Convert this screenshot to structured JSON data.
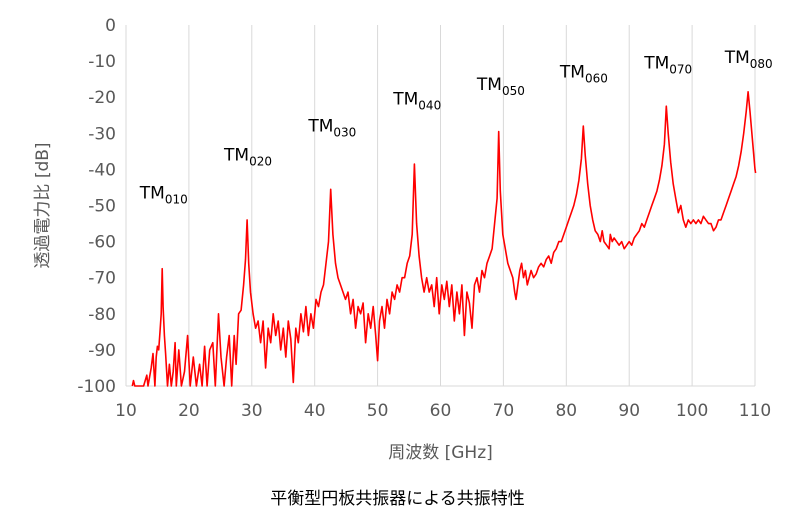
{
  "chart_data": {
    "type": "line",
    "xlabel": "周波数 [GHz]",
    "ylabel": "透過電力比 [dB]",
    "caption": "平衡型円板共振器による共振特性",
    "xlim": [
      10,
      110
    ],
    "ylim": [
      -100,
      0
    ],
    "x_ticks": [
      10,
      20,
      30,
      40,
      50,
      60,
      70,
      80,
      90,
      100,
      110
    ],
    "y_ticks": [
      0,
      -10,
      -20,
      -30,
      -40,
      -50,
      -60,
      -70,
      -80,
      -90,
      -100
    ],
    "grid": "vertical",
    "line_color": "#ff0000",
    "peak_labels": [
      {
        "main": "TM",
        "sub": "010",
        "x": 16.0,
        "y": -48.0
      },
      {
        "main": "TM",
        "sub": "020",
        "x": 29.4,
        "y": -37.5
      },
      {
        "main": "TM",
        "sub": "030",
        "x": 42.8,
        "y": -29.5
      },
      {
        "main": "TM",
        "sub": "040",
        "x": 56.3,
        "y": -22.0
      },
      {
        "main": "TM",
        "sub": "050",
        "x": 69.6,
        "y": -18.0
      },
      {
        "main": "TM",
        "sub": "060",
        "x": 82.8,
        "y": -14.5
      },
      {
        "main": "TM",
        "sub": "070",
        "x": 96.2,
        "y": -12.0
      },
      {
        "main": "TM",
        "sub": "080",
        "x": 109.0,
        "y": -10.5
      }
    ],
    "series": [
      {
        "points": [
          [
            11.0,
            -100
          ],
          [
            11.2,
            -98.5
          ],
          [
            11.4,
            -100
          ],
          [
            12.8,
            -100
          ],
          [
            13.3,
            -97
          ],
          [
            13.5,
            -100
          ],
          [
            14.0,
            -95
          ],
          [
            14.3,
            -91
          ],
          [
            14.6,
            -100
          ],
          [
            14.8,
            -92
          ],
          [
            15.0,
            -89
          ],
          [
            15.2,
            -90
          ],
          [
            15.4,
            -85
          ],
          [
            15.6,
            -80
          ],
          [
            15.75,
            -67.5
          ],
          [
            15.9,
            -78
          ],
          [
            16.1,
            -86
          ],
          [
            16.3,
            -91
          ],
          [
            16.6,
            -100
          ],
          [
            16.9,
            -94
          ],
          [
            17.2,
            -100
          ],
          [
            17.5,
            -96
          ],
          [
            17.8,
            -88
          ],
          [
            18.0,
            -100
          ],
          [
            18.4,
            -90
          ],
          [
            18.8,
            -100
          ],
          [
            19.3,
            -96
          ],
          [
            19.8,
            -86
          ],
          [
            20.2,
            -100
          ],
          [
            20.7,
            -92
          ],
          [
            21.2,
            -100
          ],
          [
            21.7,
            -94
          ],
          [
            22.1,
            -100
          ],
          [
            22.5,
            -89
          ],
          [
            22.9,
            -100
          ],
          [
            23.3,
            -90
          ],
          [
            23.8,
            -88
          ],
          [
            24.2,
            -100
          ],
          [
            24.7,
            -80
          ],
          [
            25.1,
            -92
          ],
          [
            25.6,
            -100
          ],
          [
            26.0,
            -92
          ],
          [
            26.4,
            -86
          ],
          [
            26.8,
            -100
          ],
          [
            27.2,
            -86
          ],
          [
            27.5,
            -94
          ],
          [
            27.9,
            -80
          ],
          [
            28.3,
            -79
          ],
          [
            28.7,
            -72
          ],
          [
            29.0,
            -65
          ],
          [
            29.25,
            -54
          ],
          [
            29.5,
            -66
          ],
          [
            29.8,
            -74
          ],
          [
            30.2,
            -80
          ],
          [
            30.6,
            -84
          ],
          [
            31.0,
            -82
          ],
          [
            31.4,
            -88
          ],
          [
            31.8,
            -82
          ],
          [
            32.2,
            -95
          ],
          [
            32.6,
            -84
          ],
          [
            33.0,
            -88
          ],
          [
            33.4,
            -80
          ],
          [
            33.8,
            -86
          ],
          [
            34.2,
            -82
          ],
          [
            34.6,
            -90
          ],
          [
            35.0,
            -84
          ],
          [
            35.4,
            -92
          ],
          [
            35.8,
            -82
          ],
          [
            36.2,
            -87
          ],
          [
            36.6,
            -99
          ],
          [
            37.0,
            -84
          ],
          [
            37.4,
            -88
          ],
          [
            37.8,
            -80
          ],
          [
            38.2,
            -85
          ],
          [
            38.6,
            -78
          ],
          [
            39.0,
            -86
          ],
          [
            39.4,
            -80
          ],
          [
            39.8,
            -84
          ],
          [
            40.2,
            -76
          ],
          [
            40.6,
            -78
          ],
          [
            41.0,
            -74
          ],
          [
            41.4,
            -72
          ],
          [
            41.8,
            -66
          ],
          [
            42.2,
            -60
          ],
          [
            42.55,
            -45.5
          ],
          [
            42.9,
            -58
          ],
          [
            43.3,
            -66
          ],
          [
            43.7,
            -70
          ],
          [
            44.1,
            -72
          ],
          [
            44.5,
            -74
          ],
          [
            44.9,
            -76
          ],
          [
            45.3,
            -74
          ],
          [
            45.7,
            -80
          ],
          [
            46.1,
            -76
          ],
          [
            46.5,
            -84
          ],
          [
            46.9,
            -78
          ],
          [
            47.3,
            -80
          ],
          [
            47.7,
            -77
          ],
          [
            48.1,
            -88
          ],
          [
            48.5,
            -80
          ],
          [
            48.9,
            -84
          ],
          [
            49.3,
            -78
          ],
          [
            49.7,
            -86
          ],
          [
            50.0,
            -93
          ],
          [
            50.3,
            -82
          ],
          [
            50.7,
            -78
          ],
          [
            51.1,
            -84
          ],
          [
            51.5,
            -76
          ],
          [
            51.9,
            -80
          ],
          [
            52.3,
            -74
          ],
          [
            52.7,
            -76
          ],
          [
            53.1,
            -72
          ],
          [
            53.5,
            -74
          ],
          [
            53.9,
            -70
          ],
          [
            54.3,
            -70
          ],
          [
            54.7,
            -66
          ],
          [
            55.1,
            -64
          ],
          [
            55.5,
            -58
          ],
          [
            55.85,
            -38.5
          ],
          [
            56.2,
            -55
          ],
          [
            56.6,
            -64
          ],
          [
            57.0,
            -70
          ],
          [
            57.4,
            -74
          ],
          [
            57.8,
            -70
          ],
          [
            58.2,
            -74
          ],
          [
            58.6,
            -72
          ],
          [
            59.0,
            -78
          ],
          [
            59.4,
            -70
          ],
          [
            59.8,
            -80
          ],
          [
            60.2,
            -72
          ],
          [
            60.6,
            -76
          ],
          [
            61.0,
            -71
          ],
          [
            61.4,
            -78
          ],
          [
            61.8,
            -72
          ],
          [
            62.2,
            -82
          ],
          [
            62.6,
            -74
          ],
          [
            63.0,
            -80
          ],
          [
            63.4,
            -72
          ],
          [
            63.8,
            -86
          ],
          [
            64.2,
            -74
          ],
          [
            64.6,
            -77
          ],
          [
            65.0,
            -84
          ],
          [
            65.4,
            -72
          ],
          [
            65.8,
            -70
          ],
          [
            66.2,
            -74
          ],
          [
            66.6,
            -68
          ],
          [
            67.0,
            -70
          ],
          [
            67.4,
            -66
          ],
          [
            67.8,
            -64
          ],
          [
            68.2,
            -62
          ],
          [
            68.6,
            -55
          ],
          [
            69.0,
            -48
          ],
          [
            69.25,
            -29.5
          ],
          [
            69.5,
            -46
          ],
          [
            69.9,
            -58
          ],
          [
            70.3,
            -62
          ],
          [
            70.7,
            -66
          ],
          [
            71.1,
            -68
          ],
          [
            71.5,
            -70
          ],
          [
            71.8,
            -74
          ],
          [
            72.0,
            -76
          ],
          [
            72.3,
            -72
          ],
          [
            72.6,
            -68
          ],
          [
            72.9,
            -66
          ],
          [
            73.2,
            -70
          ],
          [
            73.5,
            -68
          ],
          [
            73.8,
            -72
          ],
          [
            74.1,
            -70
          ],
          [
            74.4,
            -68
          ],
          [
            74.8,
            -70
          ],
          [
            75.2,
            -69
          ],
          [
            75.6,
            -67
          ],
          [
            76.0,
            -66
          ],
          [
            76.4,
            -67
          ],
          [
            76.8,
            -65
          ],
          [
            77.2,
            -64
          ],
          [
            77.6,
            -66
          ],
          [
            78.0,
            -63
          ],
          [
            78.4,
            -62
          ],
          [
            78.8,
            -60
          ],
          [
            79.2,
            -60
          ],
          [
            79.6,
            -58
          ],
          [
            80.0,
            -56
          ],
          [
            80.4,
            -54
          ],
          [
            80.8,
            -52
          ],
          [
            81.2,
            -50
          ],
          [
            81.6,
            -47
          ],
          [
            82.0,
            -43
          ],
          [
            82.4,
            -37
          ],
          [
            82.7,
            -28
          ],
          [
            83.0,
            -36
          ],
          [
            83.4,
            -44
          ],
          [
            83.8,
            -50
          ],
          [
            84.2,
            -54
          ],
          [
            84.6,
            -57
          ],
          [
            85.0,
            -58
          ],
          [
            85.4,
            -60
          ],
          [
            85.7,
            -57
          ],
          [
            86.0,
            -60
          ],
          [
            86.4,
            -61
          ],
          [
            86.8,
            -62
          ],
          [
            87.0,
            -58
          ],
          [
            87.3,
            -60
          ],
          [
            87.6,
            -59
          ],
          [
            88.0,
            -60
          ],
          [
            88.4,
            -61
          ],
          [
            88.8,
            -60
          ],
          [
            89.2,
            -62
          ],
          [
            89.6,
            -61
          ],
          [
            90.0,
            -60
          ],
          [
            90.4,
            -61
          ],
          [
            90.8,
            -59
          ],
          [
            91.2,
            -58
          ],
          [
            91.6,
            -57
          ],
          [
            92.0,
            -55
          ],
          [
            92.4,
            -56
          ],
          [
            92.8,
            -54
          ],
          [
            93.2,
            -52
          ],
          [
            93.6,
            -50
          ],
          [
            94.0,
            -48
          ],
          [
            94.4,
            -46
          ],
          [
            94.8,
            -43
          ],
          [
            95.2,
            -39
          ],
          [
            95.6,
            -33
          ],
          [
            95.9,
            -22.5
          ],
          [
            96.2,
            -30
          ],
          [
            96.6,
            -38
          ],
          [
            97.0,
            -44
          ],
          [
            97.4,
            -48
          ],
          [
            97.8,
            -52
          ],
          [
            98.2,
            -50
          ],
          [
            98.6,
            -54
          ],
          [
            99.0,
            -56
          ],
          [
            99.4,
            -54
          ],
          [
            99.8,
            -55
          ],
          [
            100.2,
            -54
          ],
          [
            100.6,
            -55
          ],
          [
            101.0,
            -54
          ],
          [
            101.4,
            -55
          ],
          [
            101.8,
            -53
          ],
          [
            102.2,
            -54
          ],
          [
            102.6,
            -55
          ],
          [
            103.0,
            -55
          ],
          [
            103.4,
            -57
          ],
          [
            103.8,
            -56
          ],
          [
            104.2,
            -54
          ],
          [
            104.6,
            -54
          ],
          [
            105.0,
            -52
          ],
          [
            105.4,
            -50
          ],
          [
            105.8,
            -48
          ],
          [
            106.2,
            -46
          ],
          [
            106.6,
            -44
          ],
          [
            107.0,
            -42
          ],
          [
            107.4,
            -39
          ],
          [
            107.8,
            -35
          ],
          [
            108.2,
            -30
          ],
          [
            108.6,
            -24
          ],
          [
            108.9,
            -18.5
          ],
          [
            109.2,
            -24
          ],
          [
            109.6,
            -32
          ],
          [
            110.0,
            -40
          ],
          [
            110.1,
            -41
          ]
        ]
      }
    ]
  }
}
